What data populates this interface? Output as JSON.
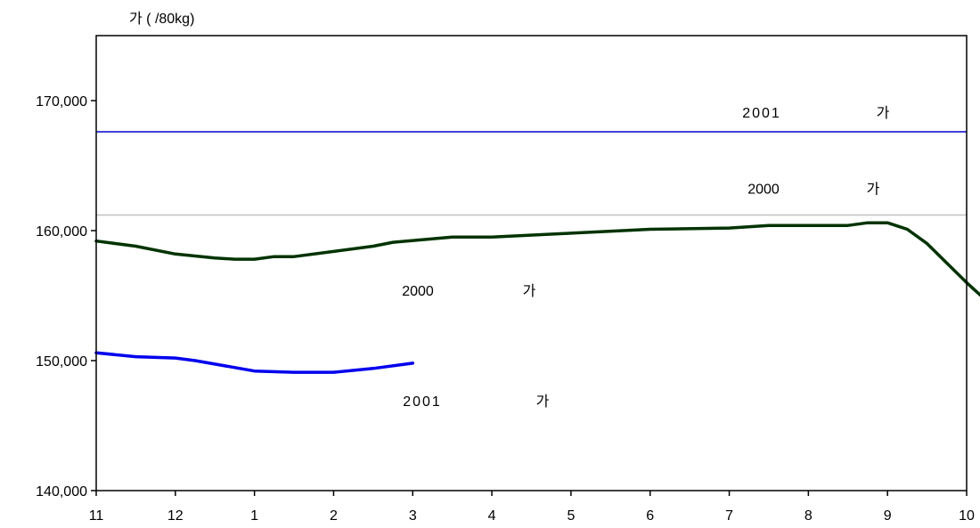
{
  "chart_data": {
    "type": "line",
    "ylabel": "가 ( /80kg)",
    "ylim": [
      140000,
      175000
    ],
    "yticks": [
      140000,
      150000,
      160000,
      170000
    ],
    "ytick_labels": [
      "140,000",
      "150,000",
      "160,000",
      "170,000"
    ],
    "x_tick_labels": [
      "11",
      "12",
      "1",
      "2",
      "3",
      "4",
      "5",
      "6",
      "7",
      "8",
      "9",
      "10"
    ],
    "grid": false,
    "reference_lines": [
      {
        "value": 167600,
        "color": "#0000cc",
        "label_left": "2001",
        "label_right": "가"
      },
      {
        "value": 161200,
        "color": "#c0c0c0",
        "label_left": "2000",
        "label_right": "가"
      }
    ],
    "series": [
      {
        "color": "#003300",
        "label_left": "2000",
        "label_right": "가",
        "points": [
          [
            0,
            159200
          ],
          [
            0.5,
            158800
          ],
          [
            1,
            158200
          ],
          [
            1.5,
            157900
          ],
          [
            1.75,
            157800
          ],
          [
            2,
            157800
          ],
          [
            2.25,
            158000
          ],
          [
            2.5,
            158000
          ],
          [
            3,
            158400
          ],
          [
            3.5,
            158800
          ],
          [
            3.75,
            159100
          ],
          [
            4.5,
            159500
          ],
          [
            5,
            159500
          ],
          [
            6,
            159800
          ],
          [
            7,
            160100
          ],
          [
            8,
            160200
          ],
          [
            8.5,
            160400
          ],
          [
            9.5,
            160400
          ],
          [
            9.75,
            160600
          ],
          [
            10,
            160600
          ],
          [
            10.25,
            160100
          ],
          [
            10.5,
            159000
          ],
          [
            10.75,
            157500
          ],
          [
            11,
            156000
          ],
          [
            11.25,
            154600
          ],
          [
            11.35,
            154100
          ]
        ]
      },
      {
        "color": "#0000ee",
        "label_left": "2001",
        "label_right": "가",
        "points": [
          [
            0,
            150600
          ],
          [
            0.5,
            150300
          ],
          [
            1,
            150200
          ],
          [
            1.25,
            150000
          ],
          [
            2,
            149200
          ],
          [
            2.5,
            149100
          ],
          [
            3,
            149100
          ],
          [
            3.5,
            149400
          ],
          [
            4,
            149800
          ]
        ]
      }
    ]
  }
}
